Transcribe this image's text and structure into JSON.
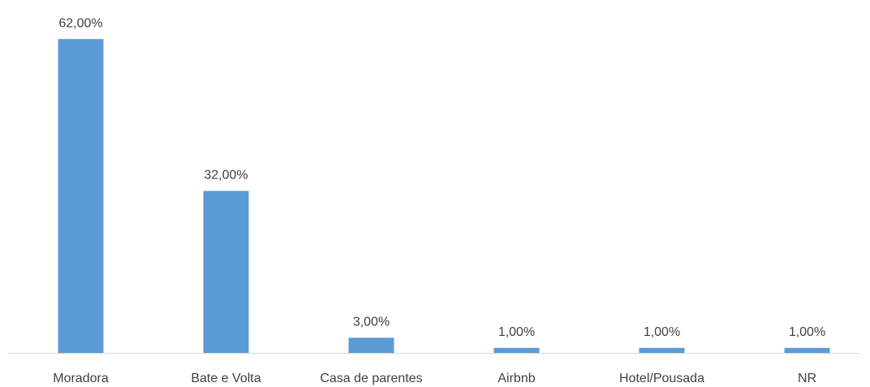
{
  "chart_data": {
    "type": "bar",
    "categories": [
      "Moradora",
      "Bate e Volta",
      "Casa de parentes",
      "Airbnb",
      "Hotel/Pousada",
      "NR"
    ],
    "values": [
      62,
      32,
      3,
      1,
      1,
      1
    ],
    "value_labels": [
      "62,00%",
      "32,00%",
      "3,00%",
      "1,00%",
      "1,00%",
      "1,00%"
    ],
    "color": "#5b9bd5",
    "ylim": [
      0,
      70
    ]
  }
}
